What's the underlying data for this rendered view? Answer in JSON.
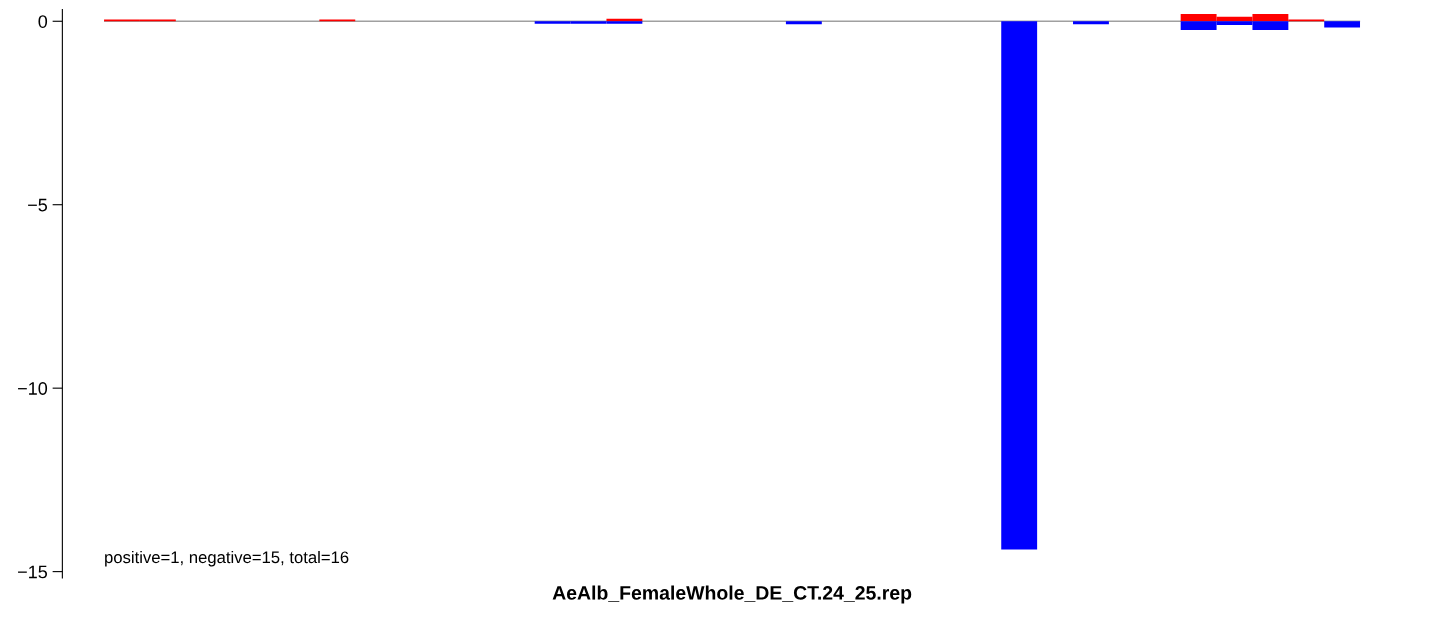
{
  "chart_data": {
    "type": "bar",
    "xlabel": "AeAlb_FemaleWhole_DE_CT.24_25.rep",
    "categories": [
      null,
      null,
      null,
      null,
      null,
      null,
      null,
      null,
      null,
      null,
      null,
      null,
      null,
      null,
      null,
      null,
      null,
      null,
      null,
      null,
      null,
      null,
      null,
      null,
      null,
      null,
      null,
      null,
      null,
      null,
      null,
      null,
      null,
      null,
      null
    ],
    "series": [
      {
        "color": "#ff0000",
        "values": [
          0.05,
          0.05,
          null,
          null,
          null,
          null,
          0.05,
          null,
          null,
          null,
          null,
          null,
          null,
          null,
          0.07,
          null,
          null,
          null,
          null,
          null,
          null,
          null,
          null,
          null,
          null,
          null,
          null,
          null,
          null,
          null,
          0.2,
          0.12,
          0.2,
          0.05,
          null
        ]
      },
      {
        "color": "#0000ff",
        "values": [
          null,
          null,
          null,
          null,
          null,
          null,
          null,
          null,
          null,
          null,
          null,
          null,
          -0.07,
          -0.07,
          -0.07,
          null,
          null,
          null,
          null,
          -0.08,
          null,
          null,
          null,
          null,
          null,
          -14.4,
          null,
          -0.08,
          null,
          null,
          -0.24,
          -0.1,
          -0.24,
          null,
          -0.17
        ]
      }
    ],
    "ylim": [
      -15.17,
      0.32
    ],
    "yticks": [
      {
        "value": -15,
        "label": "−15"
      },
      {
        "value": -10,
        "label": "−10"
      },
      {
        "value": -5,
        "label": "−5"
      },
      0
    ],
    "ref_lines": [
      {
        "axis": "y",
        "value": 0,
        "color": "#a0a0a0"
      }
    ],
    "annotations": [
      "positive=1, negative=15, total=16"
    ]
  }
}
